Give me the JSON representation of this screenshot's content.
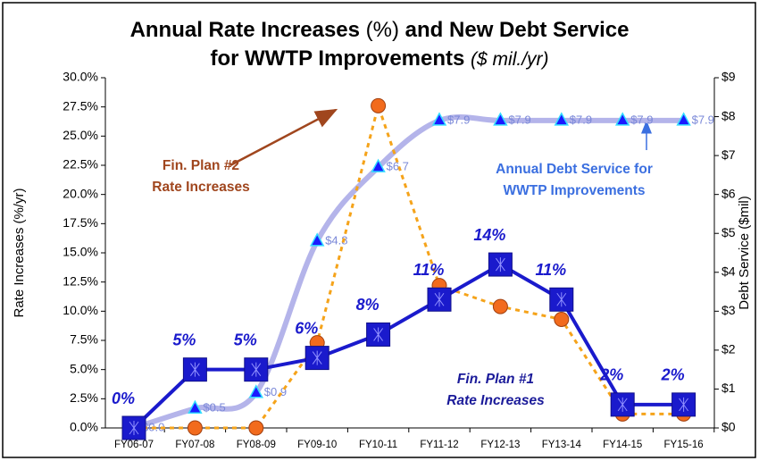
{
  "chart_data": {
    "type": "line",
    "title": [
      "Annual Rate Increases",
      "(%)",
      "and New Debt Service",
      "for WWTP Improvements",
      "($ mil./yr)"
    ],
    "y_label": "Rate Increases (%/yr)",
    "y2_label": "Debt Service ($mil)",
    "categories": [
      "FY06-07",
      "FY07-08",
      "FY08-09",
      "FY09-10",
      "FY10-11",
      "FY11-12",
      "FY12-13",
      "FY13-14",
      "FY14-15",
      "FY15-16"
    ],
    "ylim": [
      0,
      30
    ],
    "yticks": [
      {
        "value": 0,
        "label": "0.0%"
      },
      {
        "value": 2.5,
        "label": "2.5%"
      },
      {
        "value": 5,
        "label": "5.0%"
      },
      {
        "value": 7.5,
        "label": "7.5%"
      },
      {
        "value": 10,
        "label": "10.0%"
      },
      {
        "value": 12.5,
        "label": "12.5%"
      },
      {
        "value": 15,
        "label": "15.0%"
      },
      {
        "value": 17.5,
        "label": "17.5%"
      },
      {
        "value": 20,
        "label": "20.0%"
      },
      {
        "value": 22.5,
        "label": "22.5%"
      },
      {
        "value": 25,
        "label": "25.0%"
      },
      {
        "value": 27.5,
        "label": "27.5%"
      },
      {
        "value": 30,
        "label": "30.0%"
      }
    ],
    "y2lim": [
      0,
      9
    ],
    "y2ticks": [
      {
        "value": 0,
        "label": "$0"
      },
      {
        "value": 1,
        "label": "$1"
      },
      {
        "value": 2,
        "label": "$2"
      },
      {
        "value": 3,
        "label": "$3"
      },
      {
        "value": 4,
        "label": "$4"
      },
      {
        "value": 5,
        "label": "$5"
      },
      {
        "value": 6,
        "label": "$6"
      },
      {
        "value": 7,
        "label": "$7"
      },
      {
        "value": 8,
        "label": "$8"
      },
      {
        "value": 9,
        "label": "$9"
      }
    ],
    "grid": false,
    "series": [
      {
        "color": "#1a1acc",
        "style": "solid",
        "marker": "square",
        "values": [
          0,
          5,
          5,
          6,
          8,
          11,
          14,
          11,
          2,
          2
        ],
        "value_labels": [
          "0%",
          "5%",
          "5%",
          "6%",
          "8%",
          "11%",
          "14%",
          "11%",
          "2%",
          "2%"
        ]
      },
      {
        "color": "#f5a31a",
        "style": "dotted",
        "marker": "circle",
        "values": [
          0,
          0,
          0,
          7.3,
          27.6,
          12.2,
          10.4,
          9.3,
          1.2,
          1.2
        ]
      },
      {
        "color": "#b4b4ea",
        "style": "smooth",
        "marker": "triangle",
        "axis": "y2",
        "values": [
          0.0,
          0.5,
          0.9,
          4.8,
          6.7,
          7.9,
          7.9,
          7.9,
          7.9,
          7.9
        ],
        "value_labels": [
          "$0.0",
          "$0.5",
          "$0.9",
          "$4.8",
          "$6.7",
          "$7.9",
          "$7.9",
          "$7.9",
          "$7.9",
          "$7.9"
        ]
      }
    ],
    "annotations": [
      {
        "lines": [
          "Fin. Plan #2",
          "Rate Increases"
        ],
        "color": "#a0461e"
      },
      {
        "lines": [
          "Annual Debt Service for",
          "WWTP Improvements"
        ],
        "color": "#3b6fe0"
      },
      {
        "lines": [
          "Fin. Plan #1",
          "Rate Increases"
        ],
        "color": "#1a1a99"
      }
    ]
  }
}
